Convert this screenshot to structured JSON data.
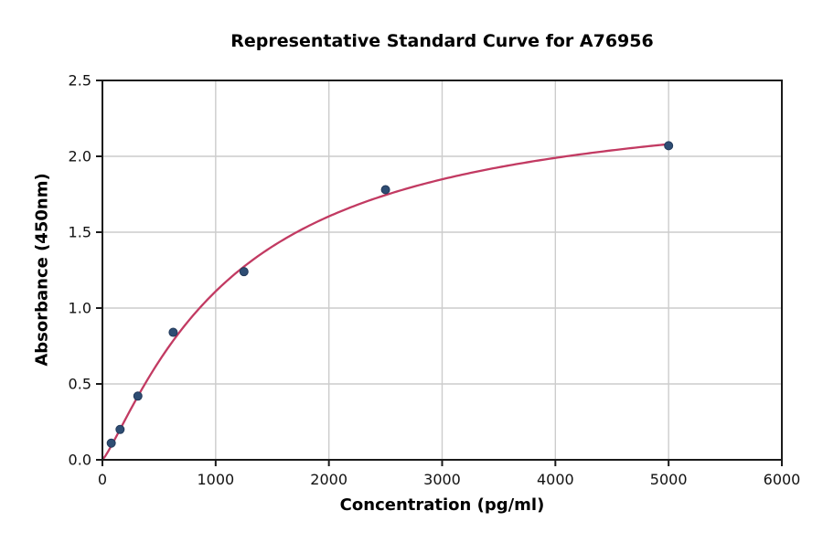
{
  "chart_data": {
    "type": "scatter",
    "title": "Representative Standard Curve for A76956",
    "xlabel": "Concentration (pg/ml)",
    "ylabel": "Absorbance (450nm)",
    "xlim": [
      0,
      6000
    ],
    "ylim": [
      0,
      2.5
    ],
    "grid": true,
    "grid_color": "#cccccc",
    "spine_color": "#1a1a1a",
    "background": "#ffffff",
    "xticks": [
      {
        "value": 0,
        "label": "0"
      },
      {
        "value": 1000,
        "label": "1000"
      },
      {
        "value": 2000,
        "label": "2000"
      },
      {
        "value": 3000,
        "label": "3000"
      },
      {
        "value": 4000,
        "label": "4000"
      },
      {
        "value": 5000,
        "label": "5000"
      },
      {
        "value": 6000,
        "label": "6000"
      }
    ],
    "yticks": [
      {
        "value": 0,
        "label": "0.0"
      },
      {
        "value": 0.5,
        "label": "0.5"
      },
      {
        "value": 1,
        "label": "1.0"
      },
      {
        "value": 1.5,
        "label": "1.5"
      },
      {
        "value": 2,
        "label": "2.0"
      },
      {
        "value": 2.5,
        "label": "2.5"
      }
    ],
    "series": [
      {
        "name": "standard-points",
        "type": "scatter",
        "color": "#2e4d73",
        "edge_color": "#22395a",
        "points": [
          {
            "x": 78,
            "y": 0.11
          },
          {
            "x": 156,
            "y": 0.2
          },
          {
            "x": 313,
            "y": 0.42
          },
          {
            "x": 625,
            "y": 0.84
          },
          {
            "x": 1250,
            "y": 1.24
          },
          {
            "x": 2500,
            "y": 1.78
          },
          {
            "x": 5000,
            "y": 2.07
          }
        ]
      },
      {
        "name": "fitted-curve",
        "type": "line",
        "color": "#c23a62",
        "fit": {
          "model": "y = d*x^b / (c^b + x^b)",
          "d": 2.442,
          "b": 1.2,
          "c": 1164,
          "x_range": [
            0,
            5000
          ]
        }
      }
    ]
  }
}
